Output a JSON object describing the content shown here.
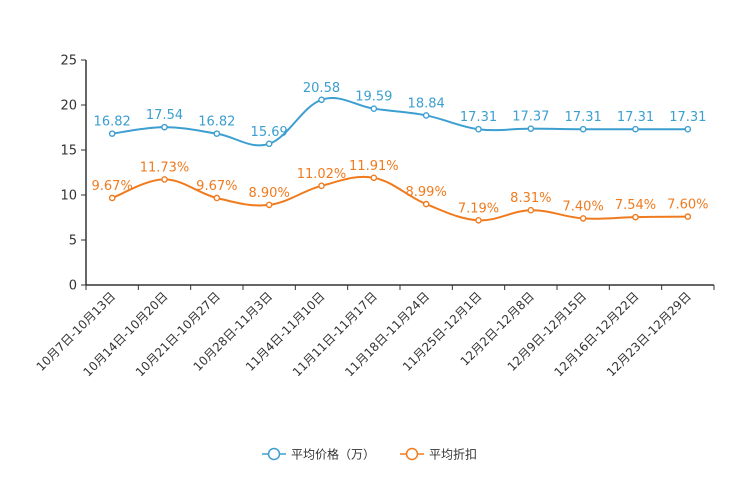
{
  "chart_data": {
    "type": "line",
    "categories": [
      "10月7日-10月13日",
      "10月14日-10月20日",
      "10月21日-10月27日",
      "10月28日-11月3日",
      "11月4日-11月10日",
      "11月11日-11月17日",
      "11月18日-11月24日",
      "11月25日-12月1日",
      "12月2日-12月8日",
      "12月9日-12月15日",
      "12月16日-12月22日",
      "12月23日-12月29日"
    ],
    "ylim": [
      0,
      25
    ],
    "yticks": [
      0,
      5,
      10,
      15,
      20,
      25
    ],
    "series": [
      {
        "name": "平均价格（万）",
        "color": "#3C9FD0",
        "values": [
          16.82,
          17.54,
          16.82,
          15.69,
          20.58,
          19.59,
          18.84,
          17.31,
          17.37,
          17.31,
          17.31,
          17.31
        ],
        "labels": [
          "16.82",
          "17.54",
          "16.82",
          "15.69",
          "20.58",
          "19.59",
          "18.84",
          "17.31",
          "17.37",
          "17.31",
          "17.31",
          "17.31"
        ]
      },
      {
        "name": "平均折扣",
        "color": "#F07B1F",
        "values": [
          9.67,
          11.73,
          9.67,
          8.9,
          11.02,
          11.91,
          8.99,
          7.19,
          8.31,
          7.4,
          7.54,
          7.6
        ],
        "labels": [
          "9.67%",
          "11.73%",
          "9.67%",
          "8.90%",
          "11.02%",
          "11.91%",
          "8.99%",
          "7.19%",
          "8.31%",
          "7.40%",
          "7.54%",
          "7.60%"
        ]
      }
    ]
  }
}
